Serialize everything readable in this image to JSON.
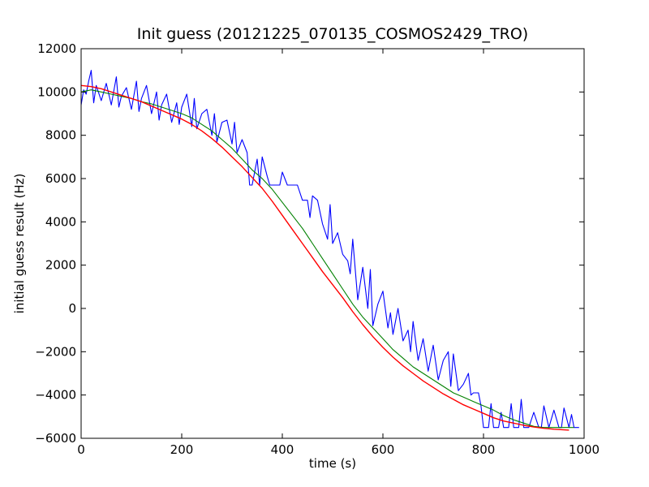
{
  "chart_data": {
    "type": "line",
    "title": "Init guess (20121225_070135_COSMOS2429_TRO)",
    "xlabel": "time (s)",
    "ylabel": "initial guess result (Hz)",
    "xlim": [
      0,
      1000
    ],
    "ylim": [
      -6000,
      12000
    ],
    "xticks": [
      "0",
      "200",
      "400",
      "600",
      "800",
      "1000"
    ],
    "yticks": [
      "12000",
      "10000",
      "8000",
      "6000",
      "4000",
      "2000",
      "0",
      "−2000",
      "−4000",
      "−6000"
    ],
    "grid": false,
    "legend": "none",
    "series": [
      {
        "color": "#0000ff",
        "x": [
          0,
          5,
          10,
          15,
          20,
          25,
          30,
          40,
          50,
          60,
          70,
          75,
          80,
          90,
          100,
          110,
          115,
          120,
          130,
          140,
          150,
          155,
          160,
          170,
          180,
          190,
          195,
          200,
          210,
          220,
          225,
          230,
          240,
          250,
          260,
          265,
          270,
          280,
          290,
          300,
          305,
          310,
          320,
          330,
          335,
          340,
          350,
          355,
          360,
          370,
          375,
          380,
          390,
          395,
          400,
          410,
          420,
          430,
          440,
          450,
          455,
          460,
          470,
          480,
          490,
          495,
          500,
          510,
          520,
          530,
          535,
          540,
          550,
          560,
          570,
          575,
          580,
          590,
          600,
          610,
          615,
          620,
          630,
          640,
          650,
          655,
          660,
          670,
          680,
          690,
          695,
          700,
          710,
          720,
          730,
          735,
          740,
          750,
          760,
          770,
          775,
          780,
          790,
          795,
          800,
          810,
          815,
          820,
          830,
          835,
          840,
          850,
          855,
          860,
          870,
          875,
          880,
          890,
          900,
          910,
          915,
          920,
          930,
          940,
          950,
          955,
          960,
          970,
          975,
          980,
          985,
          990
        ],
        "y": [
          9400,
          10100,
          9900,
          10500,
          11000,
          9500,
          10300,
          9600,
          10400,
          9400,
          10700,
          9300,
          9800,
          10200,
          9200,
          10500,
          9100,
          9700,
          10300,
          9000,
          10000,
          8700,
          9400,
          9900,
          8600,
          9500,
          8500,
          9300,
          9900,
          8400,
          9700,
          8300,
          9000,
          9200,
          8000,
          9000,
          7700,
          8600,
          8700,
          7600,
          8600,
          7200,
          7800,
          7200,
          5700,
          5700,
          6900,
          5700,
          7000,
          6100,
          5700,
          5700,
          5700,
          5700,
          6300,
          5700,
          5700,
          5700,
          5000,
          5000,
          4200,
          5200,
          5000,
          3900,
          3200,
          4800,
          3000,
          3500,
          2500,
          2200,
          1600,
          3200,
          400,
          1900,
          0,
          1800,
          -800,
          200,
          800,
          -900,
          -200,
          -1200,
          0,
          -1500,
          -1000,
          -2000,
          -600,
          -2400,
          -1400,
          -2900,
          -2300,
          -1700,
          -3300,
          -2400,
          -2000,
          -3600,
          -2100,
          -3800,
          -3500,
          -3000,
          -4000,
          -3900,
          -3900,
          -4500,
          -5500,
          -5500,
          -4400,
          -5500,
          -5500,
          -4800,
          -5500,
          -5500,
          -4400,
          -5500,
          -5500,
          -4200,
          -5500,
          -5500,
          -4800,
          -5500,
          -5500,
          -4500,
          -5500,
          -4700,
          -5500,
          -5500,
          -4600,
          -5500,
          -4900,
          -5500,
          -5500,
          -5500
        ]
      },
      {
        "color": "#008000",
        "x": [
          0,
          20,
          40,
          60,
          80,
          100,
          120,
          140,
          160,
          180,
          200,
          220,
          240,
          260,
          280,
          300,
          320,
          340,
          360,
          380,
          400,
          420,
          440,
          460,
          480,
          500,
          520,
          540,
          560,
          580,
          600,
          620,
          640,
          660,
          680,
          700,
          720,
          740,
          760,
          780,
          800,
          820,
          840,
          860,
          880,
          900,
          920,
          940,
          960,
          980
        ],
        "y": [
          10000,
          10100,
          10000,
          9900,
          9800,
          9700,
          9550,
          9450,
          9300,
          9150,
          9000,
          8800,
          8500,
          8200,
          7800,
          7400,
          6900,
          6400,
          6000,
          5500,
          4900,
          4300,
          3700,
          3000,
          2300,
          1600,
          900,
          200,
          -400,
          -900,
          -1400,
          -1900,
          -2300,
          -2700,
          -3000,
          -3300,
          -3600,
          -3900,
          -4100,
          -4300,
          -4500,
          -4700,
          -4950,
          -5150,
          -5300,
          -5450,
          -5500,
          -5500,
          -5500,
          -5500
        ]
      },
      {
        "color": "#ff0000",
        "x": [
          0,
          20,
          40,
          60,
          80,
          100,
          120,
          140,
          160,
          180,
          200,
          220,
          240,
          260,
          280,
          300,
          320,
          340,
          360,
          380,
          400,
          420,
          440,
          460,
          480,
          500,
          520,
          540,
          560,
          580,
          600,
          620,
          640,
          660,
          680,
          700,
          720,
          740,
          760,
          780,
          800,
          820,
          840,
          860,
          880,
          900,
          920,
          940,
          960,
          970
        ],
        "y": [
          10300,
          10250,
          10150,
          10000,
          9850,
          9700,
          9550,
          9350,
          9150,
          8950,
          8750,
          8500,
          8200,
          7850,
          7450,
          7000,
          6550,
          6050,
          5550,
          4950,
          4300,
          3650,
          3000,
          2350,
          1700,
          1100,
          500,
          -150,
          -750,
          -1300,
          -1800,
          -2250,
          -2650,
          -3000,
          -3350,
          -3650,
          -3950,
          -4200,
          -4450,
          -4650,
          -4850,
          -5050,
          -5200,
          -5300,
          -5400,
          -5480,
          -5540,
          -5580,
          -5610,
          -5620
        ]
      }
    ]
  }
}
